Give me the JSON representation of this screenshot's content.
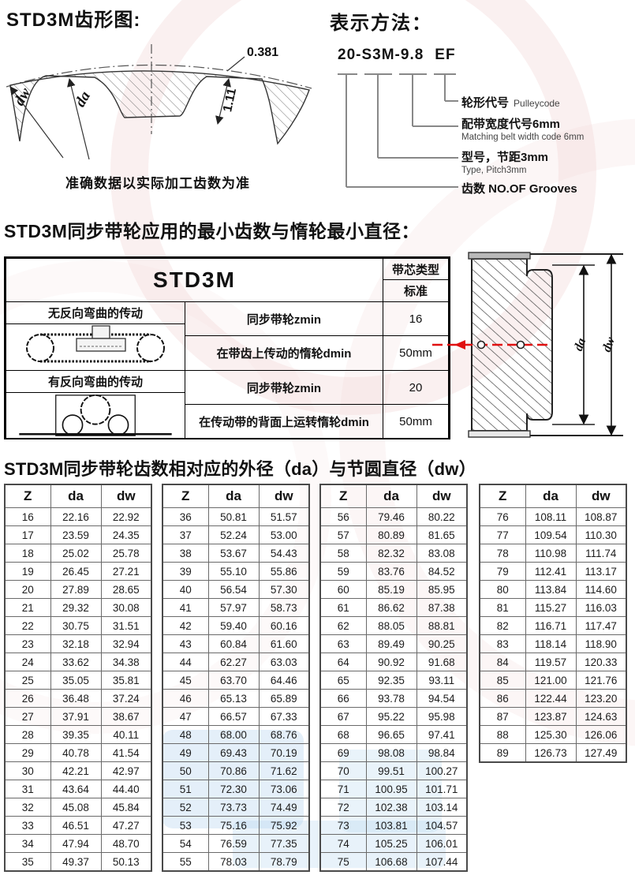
{
  "header": {
    "tooth_title": "STD3M齿形图:",
    "notation_title": "表示方法："
  },
  "tooth_diagram": {
    "dim_addendum": "0.381",
    "dim_depth": "1.11",
    "label_dw": "dw",
    "label_da": "da",
    "caption": "准确数据以实际加工齿数为准"
  },
  "notation": {
    "parts": [
      "20",
      "S3M",
      "9.8",
      "EF"
    ],
    "separator": "-",
    "callouts": [
      {
        "cn": "轮形代号",
        "en": "Pulleycode"
      },
      {
        "cn": "配带宽度代号6mm",
        "en": "Matching belt width code 6mm"
      },
      {
        "cn": "型号，节距3mm",
        "en": "Type, Pitch3mm"
      },
      {
        "cn": "齿数 NO.OF Grooves",
        "en": ""
      }
    ]
  },
  "section_min": {
    "title": "STD3M同步带轮应用的最小齿数与惰轮最小直径：",
    "table": {
      "model": "STD3M",
      "col_type": "带芯类型",
      "col_std": "标准",
      "group1": "无反向弯曲的传动",
      "group2": "有反向弯曲的传动",
      "rows": [
        {
          "param": "同步带轮zmin",
          "value": "16"
        },
        {
          "param": "在带齿上传动的惰轮dmin",
          "value": "50mm"
        },
        {
          "param": "同步带轮zmin",
          "value": "20"
        },
        {
          "param": "在传动带的背面上运转惰轮dmin",
          "value": "50mm"
        }
      ]
    },
    "pulley_labels": {
      "da": "da",
      "dw": "dw"
    }
  },
  "section_dia": {
    "title": "STD3M同步带轮齿数相对应的外径（da）与节圆直径（dw）",
    "headers": [
      "Z",
      "da",
      "dw"
    ],
    "blocks": [
      [
        [
          "16",
          "22.16",
          "22.92"
        ],
        [
          "17",
          "23.59",
          "24.35"
        ],
        [
          "18",
          "25.02",
          "25.78"
        ],
        [
          "19",
          "26.45",
          "27.21"
        ],
        [
          "20",
          "27.89",
          "28.65"
        ],
        [
          "21",
          "29.32",
          "30.08"
        ],
        [
          "22",
          "30.75",
          "31.51"
        ],
        [
          "23",
          "32.18",
          "32.94"
        ],
        [
          "24",
          "33.62",
          "34.38"
        ],
        [
          "25",
          "35.05",
          "35.81"
        ],
        [
          "26",
          "36.48",
          "37.24"
        ],
        [
          "27",
          "37.91",
          "38.67"
        ],
        [
          "28",
          "39.35",
          "40.11"
        ],
        [
          "29",
          "40.78",
          "41.54"
        ],
        [
          "30",
          "42.21",
          "42.97"
        ],
        [
          "31",
          "43.64",
          "44.40"
        ],
        [
          "32",
          "45.08",
          "45.84"
        ],
        [
          "33",
          "46.51",
          "47.27"
        ],
        [
          "34",
          "47.94",
          "48.70"
        ],
        [
          "35",
          "49.37",
          "50.13"
        ]
      ],
      [
        [
          "36",
          "50.81",
          "51.57"
        ],
        [
          "37",
          "52.24",
          "53.00"
        ],
        [
          "38",
          "53.67",
          "54.43"
        ],
        [
          "39",
          "55.10",
          "55.86"
        ],
        [
          "40",
          "56.54",
          "57.30"
        ],
        [
          "41",
          "57.97",
          "58.73"
        ],
        [
          "42",
          "59.40",
          "60.16"
        ],
        [
          "43",
          "60.84",
          "61.60"
        ],
        [
          "44",
          "62.27",
          "63.03"
        ],
        [
          "45",
          "63.70",
          "64.46"
        ],
        [
          "46",
          "65.13",
          "65.89"
        ],
        [
          "47",
          "66.57",
          "67.33"
        ],
        [
          "48",
          "68.00",
          "68.76"
        ],
        [
          "49",
          "69.43",
          "70.19"
        ],
        [
          "50",
          "70.86",
          "71.62"
        ],
        [
          "51",
          "72.30",
          "73.06"
        ],
        [
          "52",
          "73.73",
          "74.49"
        ],
        [
          "53",
          "75.16",
          "75.92"
        ],
        [
          "54",
          "76.59",
          "77.35"
        ],
        [
          "55",
          "78.03",
          "78.79"
        ]
      ],
      [
        [
          "56",
          "79.46",
          "80.22"
        ],
        [
          "57",
          "80.89",
          "81.65"
        ],
        [
          "58",
          "82.32",
          "83.08"
        ],
        [
          "59",
          "83.76",
          "84.52"
        ],
        [
          "60",
          "85.19",
          "85.95"
        ],
        [
          "61",
          "86.62",
          "87.38"
        ],
        [
          "62",
          "88.05",
          "88.81"
        ],
        [
          "63",
          "89.49",
          "90.25"
        ],
        [
          "64",
          "90.92",
          "91.68"
        ],
        [
          "65",
          "92.35",
          "93.11"
        ],
        [
          "66",
          "93.78",
          "94.54"
        ],
        [
          "67",
          "95.22",
          "95.98"
        ],
        [
          "68",
          "96.65",
          "97.41"
        ],
        [
          "69",
          "98.08",
          "98.84"
        ],
        [
          "70",
          "99.51",
          "100.27"
        ],
        [
          "71",
          "100.95",
          "101.71"
        ],
        [
          "72",
          "102.38",
          "103.14"
        ],
        [
          "73",
          "103.81",
          "104.57"
        ],
        [
          "74",
          "105.25",
          "106.01"
        ],
        [
          "75",
          "106.68",
          "107.44"
        ]
      ],
      [
        [
          "76",
          "108.11",
          "108.87"
        ],
        [
          "77",
          "109.54",
          "110.30"
        ],
        [
          "78",
          "110.98",
          "111.74"
        ],
        [
          "79",
          "112.41",
          "113.17"
        ],
        [
          "80",
          "113.84",
          "114.60"
        ],
        [
          "81",
          "115.27",
          "116.03"
        ],
        [
          "82",
          "116.71",
          "117.47"
        ],
        [
          "83",
          "118.14",
          "118.90"
        ],
        [
          "84",
          "119.57",
          "120.33"
        ],
        [
          "85",
          "121.00",
          "121.76"
        ],
        [
          "86",
          "122.44",
          "123.20"
        ],
        [
          "87",
          "123.87",
          "124.63"
        ],
        [
          "88",
          "125.30",
          "126.06"
        ],
        [
          "89",
          "126.73",
          "127.49"
        ]
      ]
    ]
  }
}
